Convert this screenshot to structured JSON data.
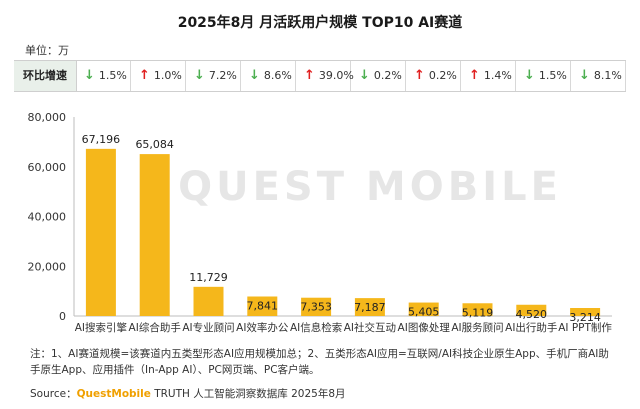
{
  "title": "2025年8月 月活跃用户规模 TOP10 AI赛道",
  "unit": "单位：万",
  "growth_row": {
    "label": "环比增速",
    "items": [
      {
        "dir": "down",
        "text": "1.5%"
      },
      {
        "dir": "up",
        "text": "1.0%"
      },
      {
        "dir": "down",
        "text": "7.2%"
      },
      {
        "dir": "down",
        "text": "8.6%"
      },
      {
        "dir": "up",
        "text": "39.0%"
      },
      {
        "dir": "down",
        "text": "0.2%"
      },
      {
        "dir": "up",
        "text": "0.2%"
      },
      {
        "dir": "up",
        "text": "1.4%"
      },
      {
        "dir": "down",
        "text": "1.5%"
      },
      {
        "dir": "down",
        "text": "8.1%"
      }
    ]
  },
  "chart_data": {
    "type": "bar",
    "categories": [
      "AI搜索引擎",
      "AI综合助手",
      "AI专业顾问",
      "AI效率办公",
      "AI信息检索",
      "AI社交互动",
      "AI图像处理",
      "AI服务顾问",
      "AI出行助手",
      "AI PPT制作"
    ],
    "values": [
      67196,
      65084,
      11729,
      7841,
      7353,
      7187,
      5405,
      5119,
      4520,
      3214
    ],
    "value_labels": [
      "67,196",
      "65,084",
      "11,729",
      "7,841",
      "7,353",
      "7,187",
      "5,405",
      "5,119",
      "4,520",
      "3,214"
    ],
    "ylim": [
      0,
      80000
    ],
    "yticks": [
      0,
      20000,
      40000,
      60000,
      80000
    ],
    "ytick_labels": [
      "0",
      "20,000",
      "40,000",
      "60,000",
      "80,000"
    ],
    "grid": false,
    "bar_color": "#f5b71b"
  },
  "watermark": "QUEST MOBILE",
  "note": "注：1、AI赛道规模=该赛道内五类型形态AI应用规模加总；2、五类形态AI应用=互联网/AI科技企业原生App、手机厂商AI助手原生App、应用插件（In-App AI）、PC网页端、PC客户端。",
  "source": {
    "prefix": "Source：",
    "brand": "QuestMobile",
    "rest": " TRUTH 人工智能洞察数据库 2025年8月"
  },
  "colors": {
    "up": "#e02020",
    "down": "#4caf50",
    "bar": "#f5b71b"
  }
}
